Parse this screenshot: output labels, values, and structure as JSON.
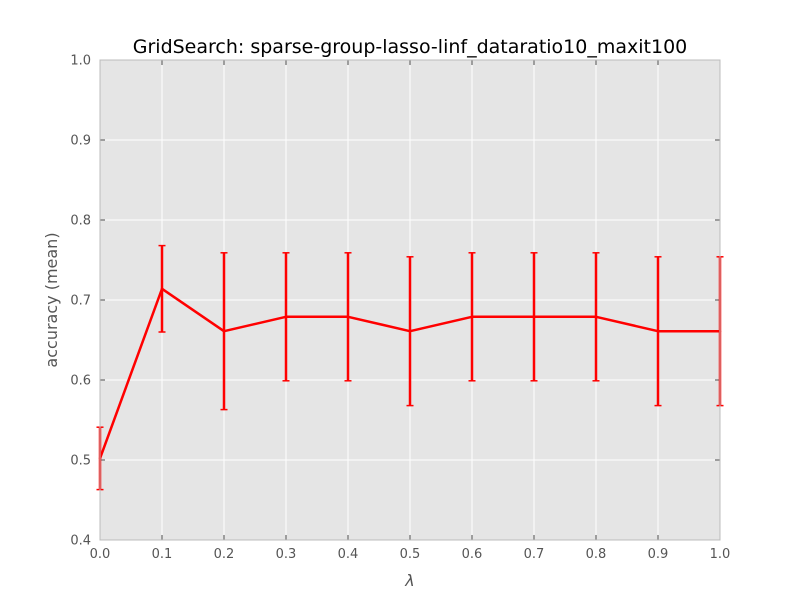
{
  "chart_data": {
    "type": "line",
    "title": "GridSearch: sparse-group-lasso-linf_dataratio10_maxit100",
    "xlabel": "λ",
    "ylabel": "accuracy (mean)",
    "xlim": [
      0.0,
      1.0
    ],
    "ylim": [
      0.4,
      1.0
    ],
    "xticks": [
      "0.0",
      "0.1",
      "0.2",
      "0.3",
      "0.4",
      "0.5",
      "0.6",
      "0.7",
      "0.8",
      "0.9",
      "1.0"
    ],
    "yticks": [
      "0.4",
      "0.5",
      "0.6",
      "0.7",
      "0.8",
      "0.9",
      "1.0"
    ],
    "grid": true,
    "background": "#e5e5e5",
    "series": [
      {
        "color": "#ff0000",
        "x": [
          0.0,
          0.1,
          0.2,
          0.3,
          0.4,
          0.5,
          0.6,
          0.7,
          0.8,
          0.9,
          1.0
        ],
        "y": [
          0.502,
          0.714,
          0.661,
          0.679,
          0.679,
          0.661,
          0.679,
          0.679,
          0.679,
          0.661,
          0.661
        ],
        "err": [
          0.039,
          0.054,
          0.098,
          0.08,
          0.08,
          0.093,
          0.08,
          0.08,
          0.08,
          0.093,
          0.093
        ]
      }
    ]
  }
}
